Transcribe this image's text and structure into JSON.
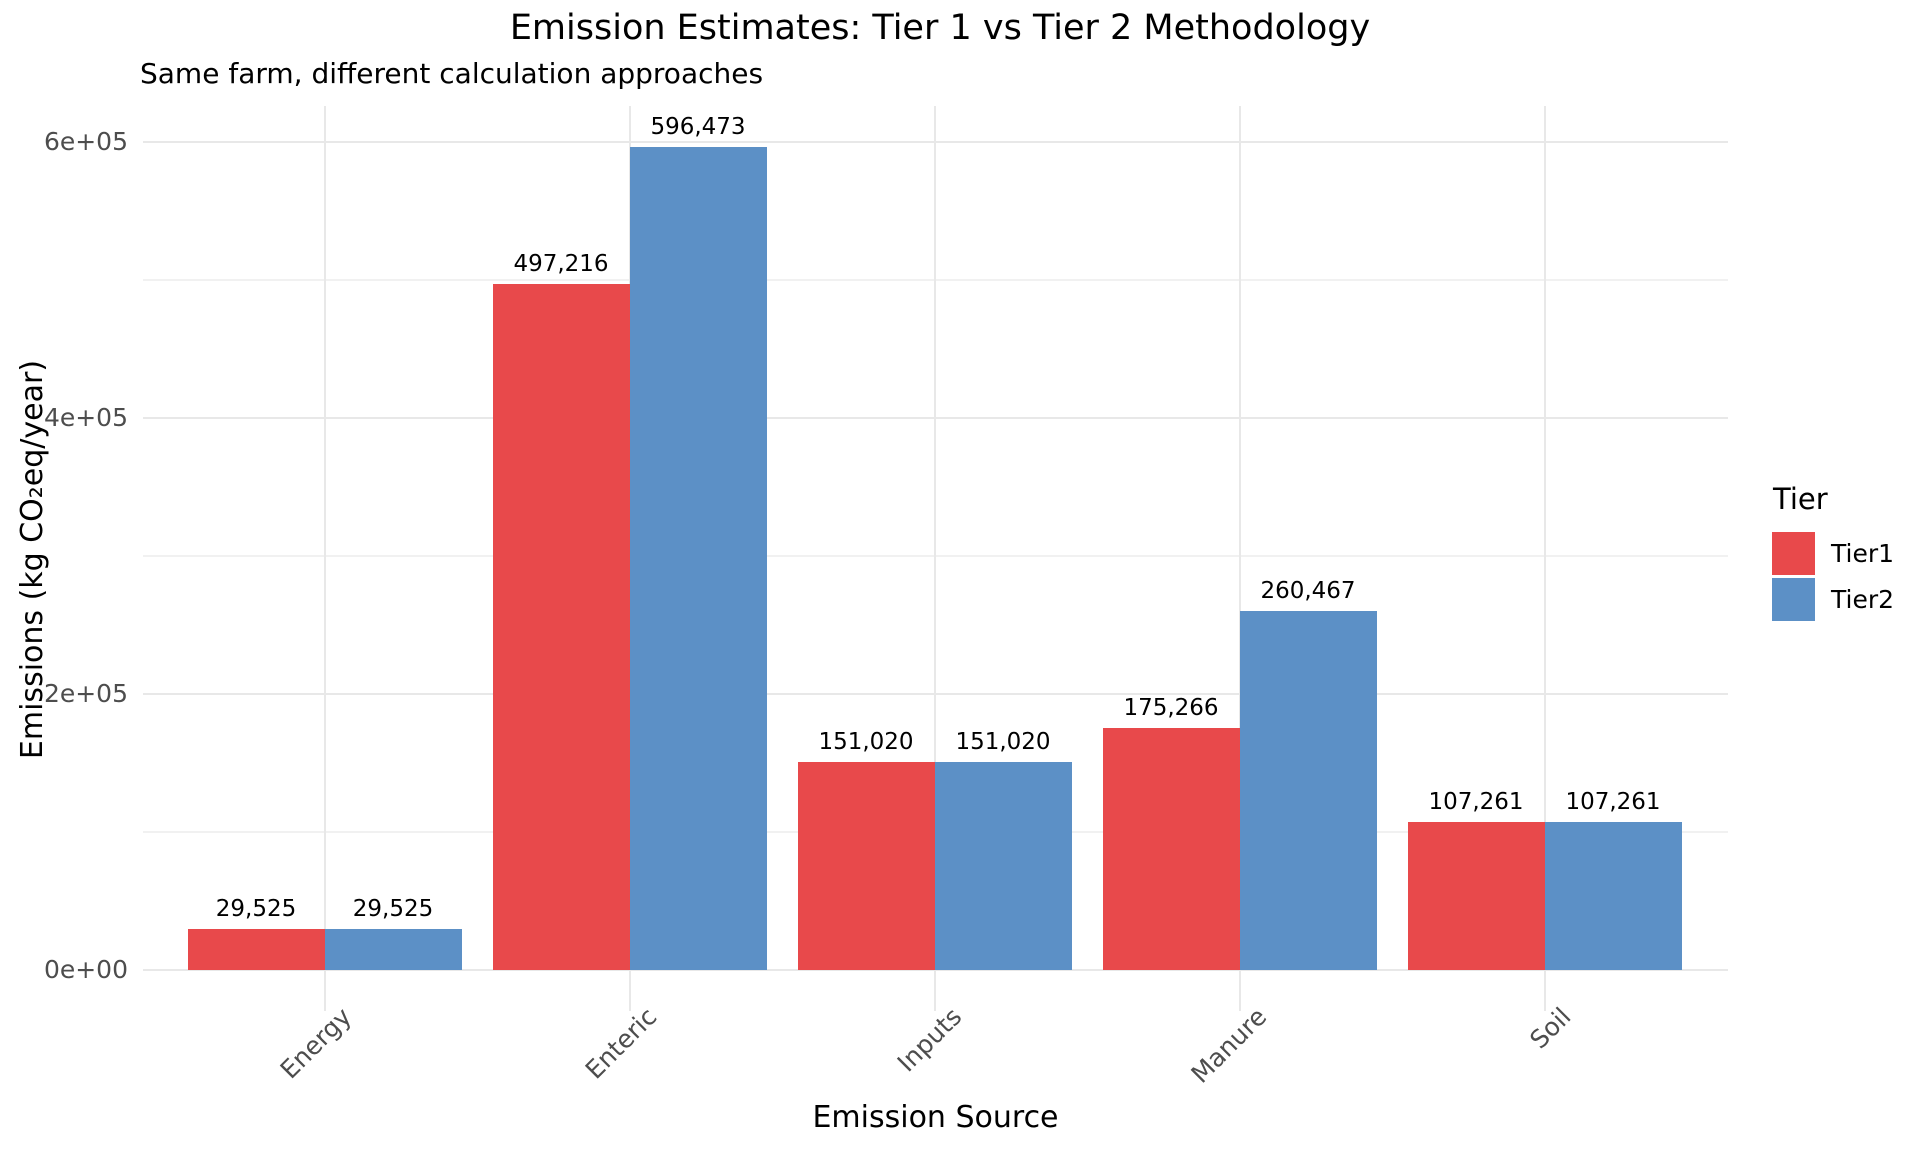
{
  "chart_data": {
    "type": "bar",
    "title": "Emission Estimates: Tier 1 vs Tier 2 Methodology",
    "subtitle": "Same farm, different calculation approaches",
    "xlabel": "Emission Source",
    "ylabel": "Emissions (kg CO₂eq/year)",
    "categories": [
      "Energy",
      "Enteric",
      "Inputs",
      "Manure",
      "Soil"
    ],
    "series": [
      {
        "name": "Tier1",
        "color": "#E8494B",
        "values": [
          29525,
          497216,
          151020,
          175266,
          107261
        ],
        "value_labels": [
          "29,525",
          "497,216",
          "151,020",
          "175,266",
          "107,261"
        ]
      },
      {
        "name": "Tier2",
        "color": "#5C90C6",
        "values": [
          29525,
          596473,
          151020,
          260467,
          107261
        ],
        "value_labels": [
          "29,525",
          "596,473",
          "151,020",
          "260,467",
          "107,261"
        ]
      }
    ],
    "y_axis": {
      "ticks": [
        {
          "value": 0,
          "label": "0e+00"
        },
        {
          "value": 200000,
          "label": "2e+05"
        },
        {
          "value": 400000,
          "label": "4e+05"
        },
        {
          "value": 600000,
          "label": "6e+05"
        }
      ],
      "minor_ticks": [
        100000,
        300000,
        500000
      ]
    },
    "ylim": [
      0,
      626000
    ],
    "grid": true,
    "legend": {
      "title": "Tier",
      "position": "right",
      "entries": [
        {
          "label": "Tier1",
          "color": "#E8494B"
        },
        {
          "label": "Tier2",
          "color": "#5C90C6"
        }
      ]
    },
    "colors": {
      "grid_major": "#E8E8E8",
      "grid_minor": "#F1F1F1",
      "tick_text": "#4D4D4D",
      "text": "#000000",
      "background": "#FFFFFF"
    }
  }
}
